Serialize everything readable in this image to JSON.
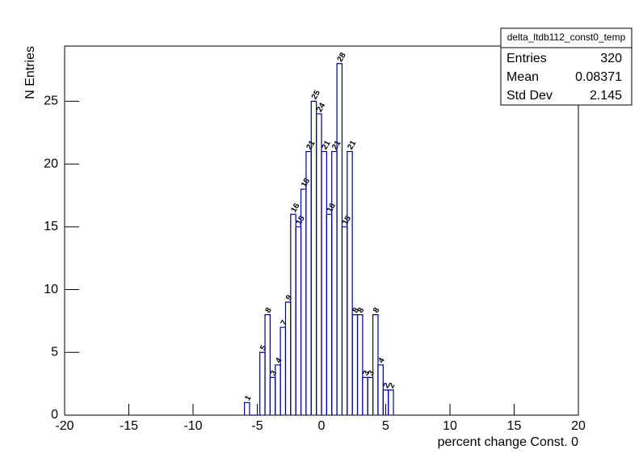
{
  "chart_data": {
    "type": "histogram",
    "bins": [
      -6,
      -5.6,
      -5.2,
      -4.8,
      -4.4,
      -4,
      -3.6,
      -3.2,
      -2.8,
      -2.4,
      -2,
      -1.6,
      -1.2,
      -0.8,
      -0.4,
      0,
      0.4,
      0.8,
      1.2,
      1.6,
      2,
      2.4,
      2.8,
      3.2,
      3.6,
      4,
      4.4,
      4.8,
      5.2,
      5.6
    ],
    "values": [
      1,
      0,
      0,
      5,
      8,
      3,
      4,
      7,
      9,
      16,
      15,
      18,
      21,
      25,
      24,
      21,
      16,
      21,
      28,
      15,
      21,
      8,
      8,
      3,
      3,
      8,
      4,
      2,
      2
    ],
    "color": "#000099",
    "xlabel": "percent change Const. 0",
    "ylabel": "N Entries",
    "xlim": [
      -20,
      20
    ],
    "xticks": [
      -20,
      -15,
      -10,
      -5,
      0,
      5,
      10,
      15,
      20
    ],
    "ylim": [
      0,
      29.4
    ],
    "yticks": [
      0,
      5,
      10,
      15,
      20,
      25
    ],
    "stats": {
      "title": "delta_ltdb112_const0_temp",
      "rows": [
        {
          "label": "Entries",
          "value": 320
        },
        {
          "label": "Mean",
          "value": 0.08371
        },
        {
          "label": "Std Dev",
          "value": 2.145
        }
      ]
    }
  }
}
